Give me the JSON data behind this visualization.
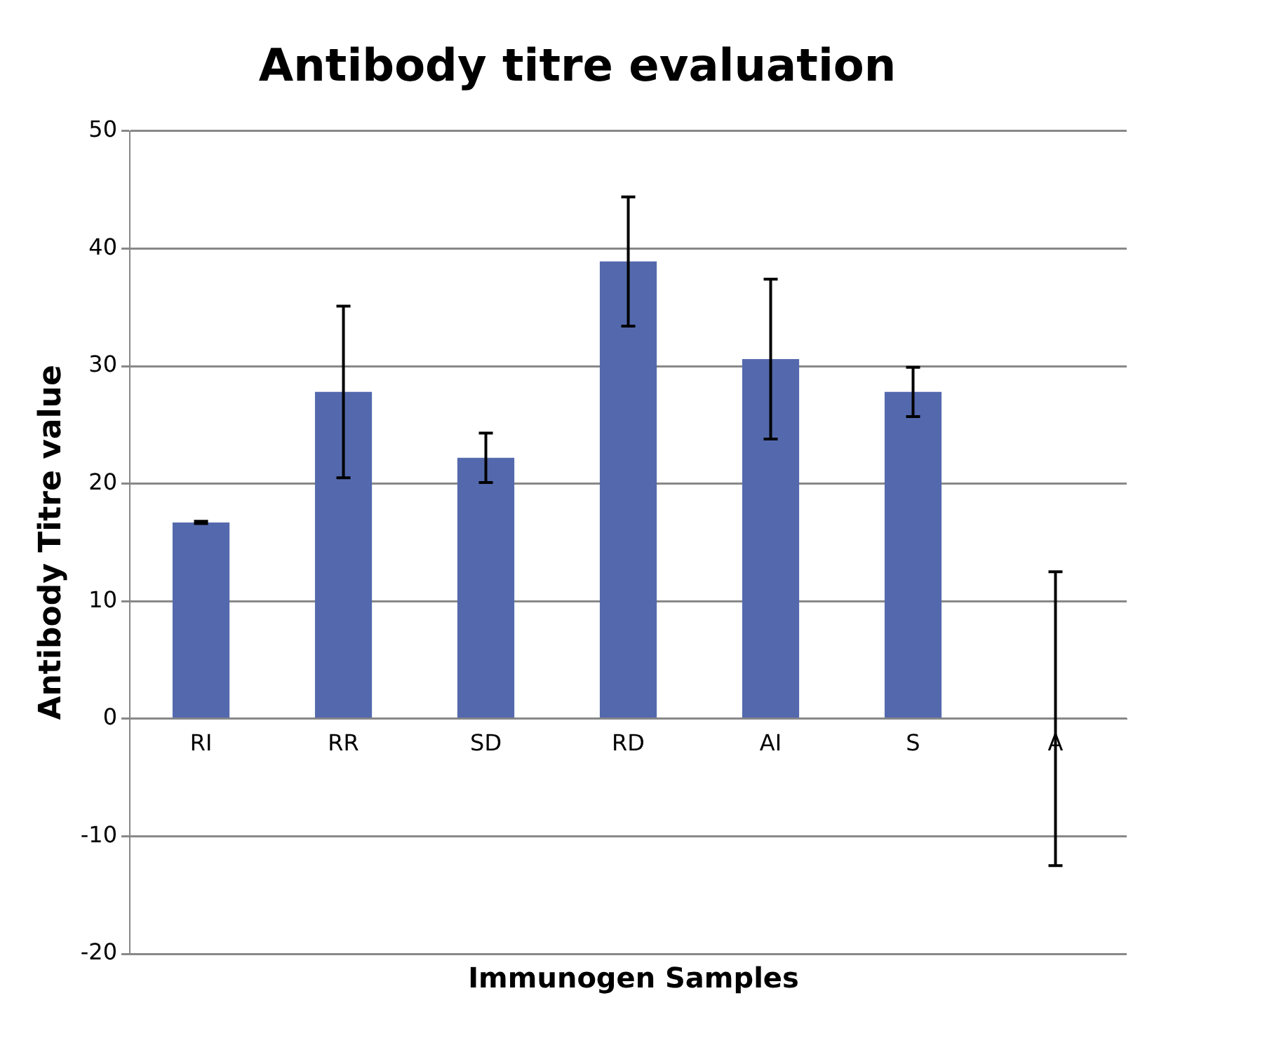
{
  "chart_data": {
    "type": "bar",
    "title": "Antibody titre evaluation",
    "xlabel": "Immunogen Samples",
    "ylabel": "Antibody Titre value",
    "categories": [
      "RI",
      "RR",
      "SD",
      "RD",
      "AI",
      "S",
      "A"
    ],
    "values": [
      16.7,
      27.8,
      22.2,
      38.9,
      30.6,
      27.8,
      0
    ],
    "errors": [
      0.1,
      7.3,
      2.1,
      5.5,
      6.8,
      2.1,
      12.5
    ],
    "color": "#5469ad",
    "ylim": [
      -20,
      50
    ],
    "yticks": [
      -20,
      -10,
      0,
      10,
      20,
      30,
      40,
      50
    ],
    "grid": "y",
    "legend": false
  }
}
